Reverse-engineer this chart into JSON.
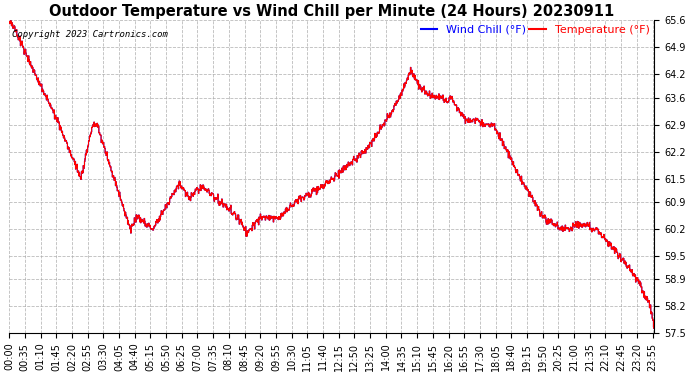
{
  "title": "Outdoor Temperature vs Wind Chill per Minute (24 Hours) 20230911",
  "copyright": "Copyright 2023 Cartronics.com",
  "legend_wind_chill": "Wind Chill (°F)",
  "legend_temperature": "Temperature (°F)",
  "wind_chill_color": "blue",
  "temperature_color": "red",
  "background_color": "#ffffff",
  "ylim": [
    57.5,
    65.6
  ],
  "yticks": [
    57.5,
    58.2,
    58.9,
    59.5,
    60.2,
    60.9,
    61.5,
    62.2,
    62.9,
    63.6,
    64.2,
    64.9,
    65.6
  ],
  "grid_color": "#aaaaaa",
  "grid_style": "--",
  "title_fontsize": 10.5,
  "tick_fontsize": 7,
  "legend_fontsize": 8,
  "figsize": [
    6.9,
    3.75
  ],
  "dpi": 100
}
